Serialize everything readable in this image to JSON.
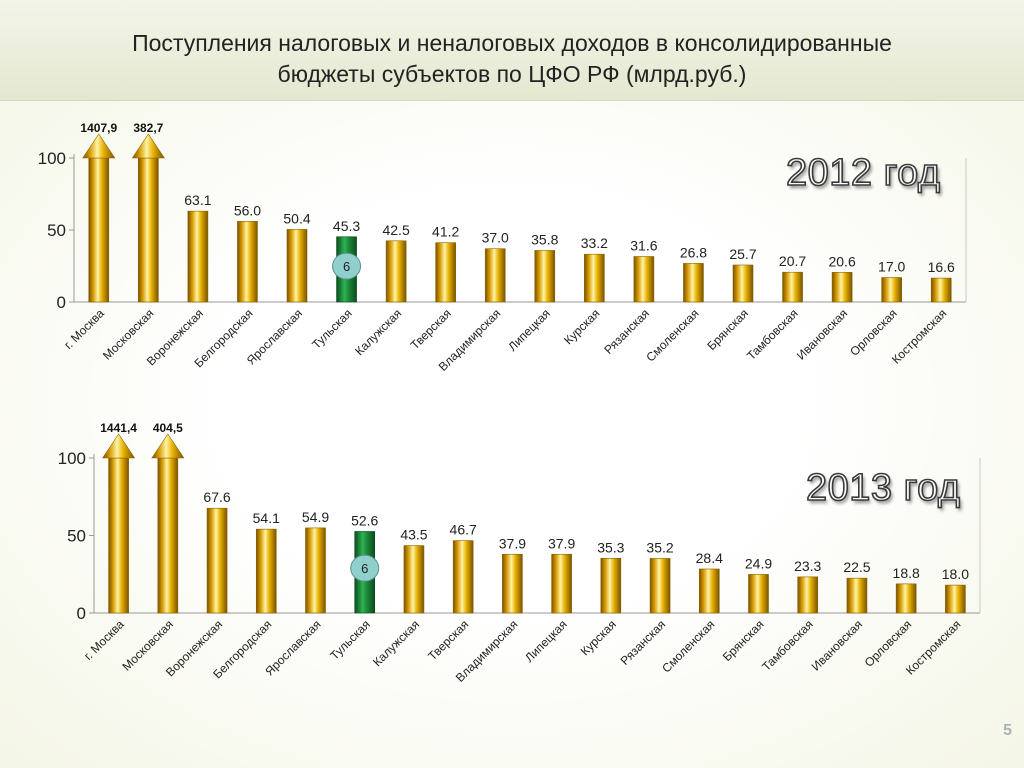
{
  "title_line1": "Поступления налоговых и неналоговых доходов в консолидированные",
  "title_line2": "бюджеты субъектов по ЦФО РФ (млрд.руб.)",
  "page_number": "5",
  "colors": {
    "bar_gold": "#e0a800",
    "bar_highlight": "#1e8a3a",
    "badge": "#8fd0cc",
    "axis": "#999999"
  },
  "chart_data": [
    {
      "type": "bar",
      "year_label": "2012 год",
      "categories": [
        "г. Москва",
        "Московская",
        "Воронежская",
        "Белгородская",
        "Ярославская",
        "Тульская",
        "Калужская",
        "Тверская",
        "Владимирская",
        "Липецкая",
        "Курская",
        "Рязанская",
        "Смоленская",
        "Брянская",
        "Тамбовская",
        "Ивановская",
        "Орловская",
        "Костромская"
      ],
      "values": [
        1407.9,
        382.7,
        63.1,
        56.0,
        50.4,
        45.3,
        42.5,
        41.2,
        37.0,
        35.8,
        33.2,
        31.6,
        26.8,
        25.7,
        20.7,
        20.6,
        17.0,
        16.6
      ],
      "value_labels": [
        "1407,9",
        "382,7",
        "63.1",
        "56.0",
        "50.4",
        "45.3",
        "42.5",
        "41.2",
        "37.0",
        "35.8",
        "33.2",
        "31.6",
        "26.8",
        "25.7",
        "20.7",
        "20.6",
        "17.0",
        "16.6"
      ],
      "overflow": [
        true,
        true,
        false,
        false,
        false,
        false,
        false,
        false,
        false,
        false,
        false,
        false,
        false,
        false,
        false,
        false,
        false,
        false
      ],
      "highlight_index": 5,
      "highlight_badge": "6",
      "ylim": [
        0,
        100
      ],
      "yticks": [
        0,
        50,
        100
      ],
      "xlabel": "",
      "ylabel": ""
    },
    {
      "type": "bar",
      "year_label": "2013 год",
      "categories": [
        "г. Москва",
        "Московская",
        "Воронежская",
        "Белгородская",
        "Ярославская",
        "Тульская",
        "Калужская",
        "Тверская",
        "Владимирская",
        "Липецкая",
        "Курская",
        "Рязанская",
        "Смоленская",
        "Брянская",
        "Тамбовская",
        "Ивановская",
        "Орловская",
        "Костромская"
      ],
      "values": [
        1441.4,
        404.5,
        67.6,
        54.1,
        54.9,
        52.6,
        43.5,
        46.7,
        37.9,
        37.9,
        35.3,
        35.2,
        28.4,
        24.9,
        23.3,
        22.5,
        18.8,
        18.0
      ],
      "value_labels": [
        "1441,4",
        "404,5",
        "67.6",
        "54.1",
        "54.9",
        "52.6",
        "43.5",
        "46.7",
        "37.9",
        "37.9",
        "35.3",
        "35.2",
        "28.4",
        "24.9",
        "23.3",
        "22.5",
        "18.8",
        "18.0"
      ],
      "overflow": [
        true,
        true,
        false,
        false,
        false,
        false,
        false,
        false,
        false,
        false,
        false,
        false,
        false,
        false,
        false,
        false,
        false,
        false
      ],
      "highlight_index": 5,
      "highlight_badge": "6",
      "ylim": [
        0,
        100
      ],
      "yticks": [
        0,
        50,
        100
      ],
      "xlabel": "",
      "ylabel": ""
    }
  ]
}
